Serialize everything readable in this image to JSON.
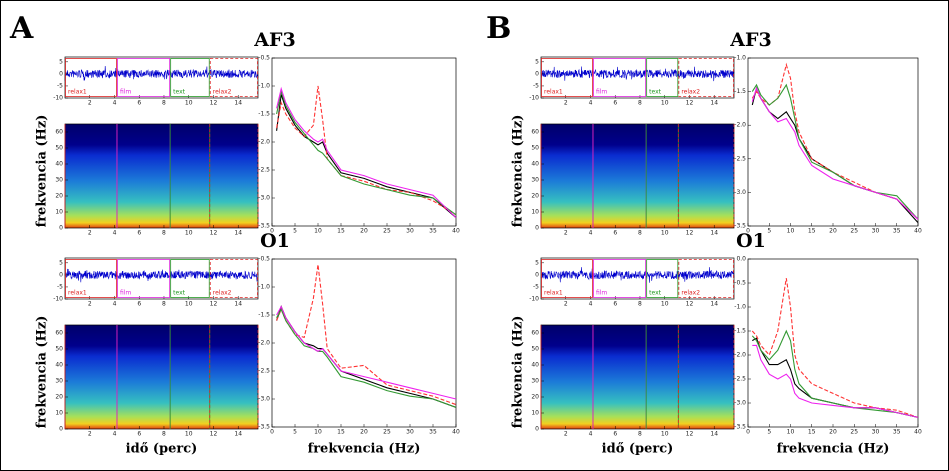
{
  "figure_labels": [
    "A",
    "B"
  ],
  "chart_data": [
    {
      "type": "timeseries",
      "xlim": [
        0,
        15.6
      ],
      "xticks": [
        2,
        4,
        6,
        8,
        10,
        12,
        14
      ],
      "ylim": [
        -10,
        7
      ],
      "yticks": [
        5,
        0,
        -5,
        -10
      ],
      "segments": [
        {
          "name": "relax1",
          "color": "#dd2222",
          "start": 0,
          "end": 4.2
        },
        {
          "name": "film",
          "color": "#dd22dd",
          "start": 4.2,
          "end": 8.5
        },
        {
          "name": "text",
          "color": "#229922",
          "start": 8.5,
          "end": 11.7
        },
        {
          "name": "relax2",
          "color": "#dd2222",
          "start": 11.7,
          "end": 15.6,
          "dashed": true
        }
      ]
    },
    {
      "type": "spectrogram",
      "y_label": "frekvencia (Hz)",
      "xlim": [
        0,
        15.6
      ],
      "xticks": [
        2,
        4,
        6,
        8,
        10,
        12,
        14
      ],
      "ylim": [
        0,
        65
      ],
      "yticks": [
        0,
        10,
        20,
        30,
        40,
        50,
        60
      ]
    },
    {
      "type": "line",
      "title": "AF3",
      "x": [
        1,
        2,
        3,
        5,
        7,
        9,
        10,
        11,
        12,
        15,
        20,
        25,
        30,
        35,
        40
      ],
      "xlim": [
        0,
        40
      ],
      "xticks": [
        0,
        5,
        10,
        15,
        20,
        25,
        30,
        35,
        40
      ],
      "ylim": [
        -3.5,
        -0.5
      ],
      "yticks": [
        -3.5,
        {
          "value": -3,
          "label": "-3.0"
        },
        -2.5,
        {
          "value": -2,
          "label": "-2.0"
        },
        -1.5,
        {
          "value": -1,
          "label": "-1.0"
        },
        -0.5
      ],
      "series": [
        {
          "color": "#000000",
          "values": [
            -1.8,
            -1.15,
            -1.4,
            -1.7,
            -1.9,
            -2.0,
            -2.05,
            -2.0,
            -2.2,
            -2.55,
            -2.65,
            -2.8,
            -2.9,
            -3.0,
            -3.35
          ]
        },
        {
          "color": "#ff3333",
          "dashed": true,
          "values": [
            -1.75,
            -1.3,
            -1.5,
            -1.75,
            -1.9,
            -1.7,
            -1.0,
            -1.6,
            -2.3,
            -2.6,
            -2.7,
            -2.85,
            -2.9,
            -3.05,
            -3.3
          ]
        },
        {
          "color": "#339933",
          "values": [
            -1.5,
            -1.1,
            -1.35,
            -1.65,
            -1.85,
            -2.05,
            -2.15,
            -2.2,
            -2.3,
            -2.6,
            -2.75,
            -2.85,
            -2.95,
            -3.0,
            -3.3
          ]
        },
        {
          "color": "#ee22ee",
          "values": [
            -1.4,
            -1.05,
            -1.3,
            -1.6,
            -1.8,
            -1.95,
            -2.0,
            -1.95,
            -2.15,
            -2.5,
            -2.6,
            -2.75,
            -2.85,
            -2.95,
            -3.35
          ]
        }
      ]
    },
    {
      "type": "timeseries",
      "xlim": [
        0,
        15.6
      ],
      "xticks": [
        2,
        4,
        6,
        8,
        10,
        12,
        14
      ],
      "ylim": [
        -10,
        7
      ],
      "yticks": [
        5,
        0,
        -5,
        -10
      ],
      "segments": [
        {
          "name": "relax1",
          "color": "#dd2222",
          "start": 0,
          "end": 4.2
        },
        {
          "name": "film",
          "color": "#dd22dd",
          "start": 4.2,
          "end": 8.5
        },
        {
          "name": "text",
          "color": "#229922",
          "start": 8.5,
          "end": 11.7
        },
        {
          "name": "relax2",
          "color": "#dd2222",
          "start": 11.7,
          "end": 15.6,
          "dashed": true
        }
      ]
    },
    {
      "type": "spectrogram",
      "y_label": "frekvencia (Hz)",
      "x_label": "idő (perc)",
      "xlim": [
        0,
        15.6
      ],
      "xticks": [
        2,
        4,
        6,
        8,
        10,
        12,
        14
      ],
      "ylim": [
        0,
        65
      ],
      "yticks": [
        0,
        10,
        20,
        30,
        40,
        50,
        60
      ]
    },
    {
      "type": "line",
      "title": "O1",
      "x_label": "frekvencia (Hz)",
      "x": [
        1,
        2,
        3,
        5,
        7,
        9,
        10,
        11,
        12,
        15,
        20,
        25,
        30,
        35,
        40
      ],
      "xlim": [
        0,
        40
      ],
      "xticks": [
        0,
        5,
        10,
        15,
        20,
        25,
        30,
        35,
        40
      ],
      "ylim": [
        -3.5,
        -0.5
      ],
      "yticks": [
        -3.5,
        {
          "value": -3,
          "label": "-3.0"
        },
        -2.5,
        {
          "value": -2,
          "label": "-2.0"
        },
        -1.5,
        {
          "value": -1,
          "label": "-1.0"
        },
        -0.5
      ],
      "series": [
        {
          "color": "#000000",
          "values": [
            -1.6,
            -1.35,
            -1.55,
            -1.8,
            -2.0,
            -2.05,
            -2.1,
            -2.1,
            -2.2,
            -2.5,
            -2.65,
            -2.8,
            -2.9,
            -3.0,
            -3.15
          ]
        },
        {
          "color": "#ff3333",
          "dashed": true,
          "values": [
            -1.6,
            -1.4,
            -1.6,
            -1.85,
            -1.9,
            -1.2,
            -0.6,
            -1.3,
            -2.1,
            -2.45,
            -2.4,
            -2.75,
            -2.85,
            -2.95,
            -3.1
          ]
        },
        {
          "color": "#339933",
          "values": [
            -1.55,
            -1.4,
            -1.6,
            -1.85,
            -2.05,
            -2.1,
            -2.15,
            -2.15,
            -2.25,
            -2.6,
            -2.7,
            -2.85,
            -2.95,
            -3.0,
            -3.15
          ]
        },
        {
          "color": "#ee22ee",
          "values": [
            -1.5,
            -1.35,
            -1.55,
            -1.8,
            -2.0,
            -2.1,
            -2.15,
            -2.1,
            -2.2,
            -2.5,
            -2.6,
            -2.7,
            -2.8,
            -2.9,
            -3.0
          ]
        }
      ]
    },
    {
      "type": "timeseries",
      "xlim": [
        0,
        15.6
      ],
      "xticks": [
        2,
        4,
        6,
        8,
        10,
        12,
        14
      ],
      "ylim": [
        -10,
        7
      ],
      "yticks": [
        5,
        0,
        -5,
        -10
      ],
      "segments": [
        {
          "name": "relax1",
          "color": "#dd2222",
          "start": 0,
          "end": 4.2
        },
        {
          "name": "film",
          "color": "#dd22dd",
          "start": 4.2,
          "end": 8.5
        },
        {
          "name": "text",
          "color": "#229922",
          "start": 8.5,
          "end": 11.1
        },
        {
          "name": "relax2",
          "color": "#dd2222",
          "start": 11.1,
          "end": 15.6,
          "dashed": true
        }
      ]
    },
    {
      "type": "spectrogram",
      "y_label": "frekvencia (Hz)",
      "xlim": [
        0,
        15.6
      ],
      "xticks": [
        2,
        4,
        6,
        8,
        10,
        12,
        14
      ],
      "ylim": [
        0,
        65
      ],
      "yticks": [
        0,
        10,
        20,
        30,
        40,
        50,
        60
      ]
    },
    {
      "type": "line",
      "title": "AF3",
      "x": [
        1,
        2,
        3,
        5,
        7,
        9,
        10,
        11,
        12,
        15,
        20,
        25,
        30,
        35,
        40
      ],
      "xlim": [
        0,
        40
      ],
      "xticks": [
        0,
        5,
        10,
        15,
        20,
        25,
        30,
        35,
        40
      ],
      "ylim": [
        -3.5,
        -1
      ],
      "yticks": [
        -3.5,
        {
          "value": -3,
          "label": "-3.0"
        },
        -2.5,
        {
          "value": -2,
          "label": "-2.0"
        },
        -1.5,
        {
          "value": -1,
          "label": "-1.0"
        }
      ],
      "series": [
        {
          "color": "#000000",
          "values": [
            -1.7,
            -1.45,
            -1.6,
            -1.8,
            -1.9,
            -1.8,
            -1.9,
            -2.0,
            -2.2,
            -2.5,
            -2.7,
            -2.9,
            -3.0,
            -3.1,
            -3.45
          ]
        },
        {
          "color": "#ff3333",
          "dashed": true,
          "values": [
            -1.6,
            -1.5,
            -1.6,
            -1.7,
            -1.6,
            -1.1,
            -1.3,
            -1.8,
            -2.1,
            -2.5,
            -2.7,
            -2.85,
            -3.0,
            -3.1,
            -3.4
          ]
        },
        {
          "color": "#339933",
          "values": [
            -1.5,
            -1.4,
            -1.55,
            -1.7,
            -1.6,
            -1.4,
            -1.6,
            -1.9,
            -2.2,
            -2.55,
            -2.7,
            -2.9,
            -3.0,
            -3.05,
            -3.4
          ]
        },
        {
          "color": "#ee22ee",
          "values": [
            -1.65,
            -1.45,
            -1.6,
            -1.8,
            -1.95,
            -1.9,
            -2.0,
            -2.1,
            -2.3,
            -2.6,
            -2.8,
            -2.9,
            -3.0,
            -3.1,
            -3.4
          ]
        }
      ]
    },
    {
      "type": "timeseries",
      "xlim": [
        0,
        15.6
      ],
      "xticks": [
        2,
        4,
        6,
        8,
        10,
        12,
        14
      ],
      "ylim": [
        -10,
        7
      ],
      "yticks": [
        5,
        0,
        -5,
        -10
      ],
      "segments": [
        {
          "name": "relax1",
          "color": "#dd2222",
          "start": 0,
          "end": 4.2
        },
        {
          "name": "film",
          "color": "#dd22dd",
          "start": 4.2,
          "end": 8.5
        },
        {
          "name": "text",
          "color": "#229922",
          "start": 8.5,
          "end": 11.1
        },
        {
          "name": "relax2",
          "color": "#dd2222",
          "start": 11.1,
          "end": 15.6,
          "dashed": true
        }
      ]
    },
    {
      "type": "spectrogram",
      "y_label": "frekvencia (Hz)",
      "x_label": "idő (perc)",
      "xlim": [
        0,
        15.6
      ],
      "xticks": [
        2,
        4,
        6,
        8,
        10,
        12,
        14
      ],
      "ylim": [
        0,
        65
      ],
      "yticks": [
        0,
        10,
        20,
        30,
        40,
        50,
        60
      ]
    },
    {
      "type": "line",
      "title": "O1",
      "x_label": "frekvencia (Hz)",
      "x": [
        1,
        2,
        3,
        5,
        7,
        9,
        10,
        11,
        12,
        15,
        20,
        25,
        30,
        35,
        40
      ],
      "xlim": [
        0,
        40
      ],
      "xticks": [
        0,
        5,
        10,
        15,
        20,
        25,
        30,
        35,
        40
      ],
      "ylim": [
        -3.5,
        0
      ],
      "yticks": [
        -3.5,
        {
          "value": -3,
          "label": "-3.0"
        },
        -2.5,
        {
          "value": -2,
          "label": "-2.0"
        },
        -1.5,
        {
          "value": -1,
          "label": "-1.0"
        },
        -0.5,
        {
          "value": 0,
          "label": "0.0"
        }
      ],
      "series": [
        {
          "color": "#000000",
          "values": [
            -1.7,
            -1.65,
            -1.9,
            -2.2,
            -2.2,
            -2.1,
            -2.3,
            -2.6,
            -2.7,
            -2.9,
            -3.0,
            -3.1,
            -3.1,
            -3.2,
            -3.3
          ]
        },
        {
          "color": "#ff3333",
          "dashed": true,
          "values": [
            -1.5,
            -1.6,
            -1.8,
            -2.0,
            -1.5,
            -0.4,
            -1.0,
            -2.0,
            -2.3,
            -2.6,
            -2.8,
            -3.0,
            -3.1,
            -3.15,
            -3.3
          ]
        },
        {
          "color": "#339933",
          "values": [
            -1.6,
            -1.7,
            -1.9,
            -2.1,
            -1.9,
            -1.5,
            -1.7,
            -2.3,
            -2.6,
            -2.9,
            -3.0,
            -3.1,
            -3.15,
            -3.2,
            -3.3
          ]
        },
        {
          "color": "#ee22ee",
          "values": [
            -1.8,
            -1.8,
            -2.1,
            -2.4,
            -2.5,
            -2.4,
            -2.5,
            -2.8,
            -2.9,
            -3.0,
            -3.05,
            -3.1,
            -3.1,
            -3.2,
            -3.3
          ]
        }
      ]
    }
  ]
}
